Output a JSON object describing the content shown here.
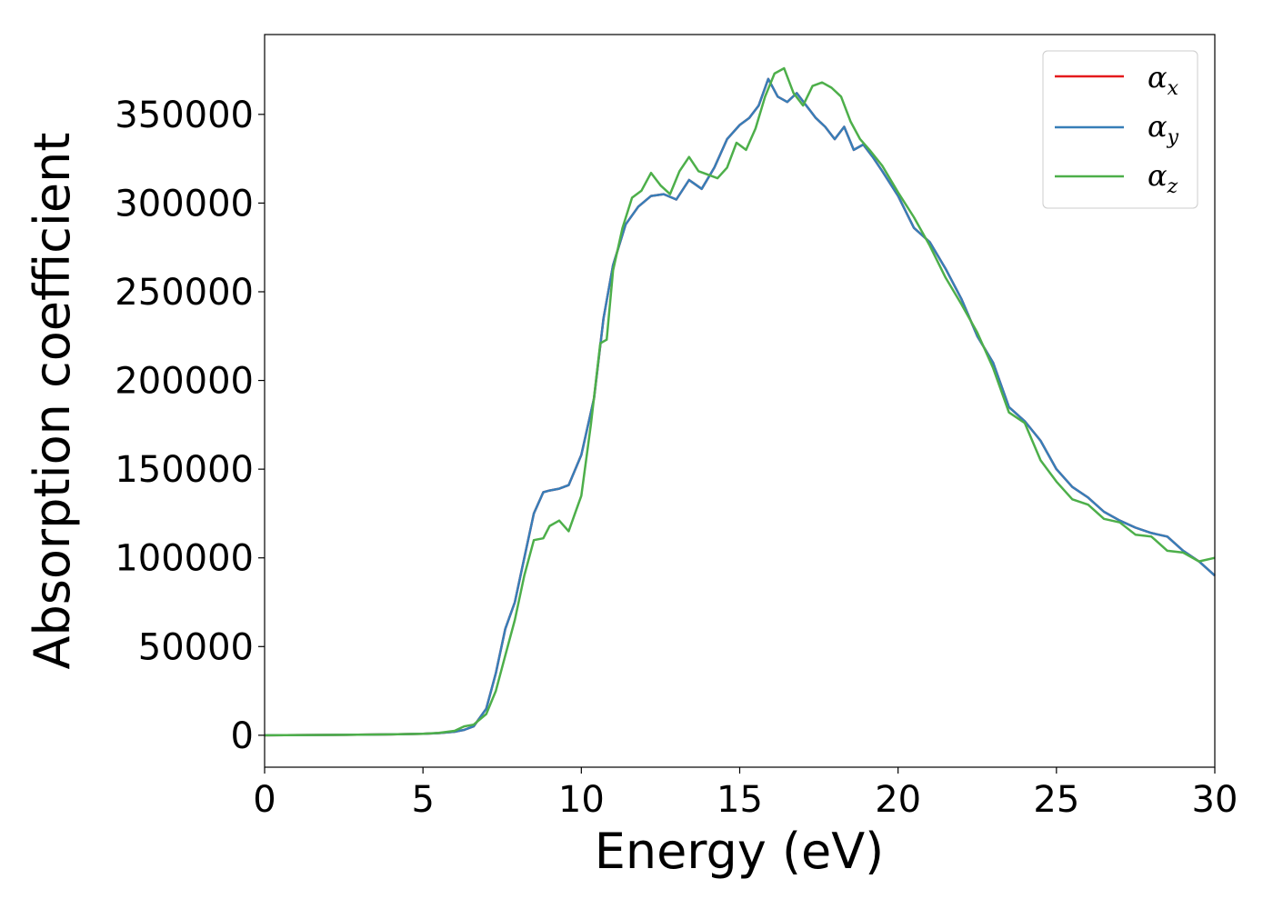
{
  "chart_data": {
    "type": "line",
    "xlabel": "Energy (eV)",
    "ylabel": "Absorption coefficient",
    "xlim": [
      0,
      30
    ],
    "ylim": [
      -18000,
      395000
    ],
    "xticks": [
      0,
      5,
      10,
      15,
      20,
      25,
      30
    ],
    "yticks": [
      0,
      50000,
      100000,
      150000,
      200000,
      250000,
      300000,
      350000
    ],
    "grid": false,
    "legend_position": "top-right",
    "series": [
      {
        "name": "α",
        "subscript": "x",
        "color": "#e41a1c",
        "x": [
          0,
          2,
          4,
          5,
          5.5,
          6,
          6.3,
          6.6,
          7,
          7.3,
          7.6,
          7.9,
          8.2,
          8.5,
          8.8,
          9.0,
          9.3,
          9.6,
          10.0,
          10.4,
          10.7,
          11.0,
          11.4,
          11.8,
          12.2,
          12.6,
          13.0,
          13.4,
          13.8,
          14.2,
          14.6,
          15.0,
          15.3,
          15.6,
          15.9,
          16.2,
          16.5,
          16.8,
          17.1,
          17.4,
          17.7,
          18.0,
          18.3,
          18.6,
          18.9,
          19.2,
          19.5,
          20.0,
          20.5,
          21.0,
          21.5,
          22.0,
          22.5,
          23.0,
          23.5,
          24.0,
          24.5,
          25.0,
          25.5,
          26.0,
          26.5,
          27.0,
          27.5,
          28.0,
          28.5,
          29.0,
          29.5,
          30.0
        ],
        "y": [
          0,
          200,
          500,
          800,
          1200,
          2000,
          3000,
          5000,
          15000,
          35000,
          60000,
          75000,
          100000,
          125000,
          137000,
          138000,
          139000,
          141000,
          158000,
          190000,
          235000,
          265000,
          288000,
          298000,
          304000,
          305000,
          302000,
          313000,
          308000,
          320000,
          336000,
          344000,
          348000,
          355000,
          370000,
          360000,
          357000,
          362000,
          355000,
          348000,
          343000,
          336000,
          343000,
          330000,
          333000,
          326000,
          318000,
          304000,
          286000,
          278000,
          263000,
          246000,
          225000,
          210000,
          185000,
          177000,
          166000,
          150000,
          140000,
          134000,
          126000,
          121000,
          117000,
          114000,
          112000,
          104000,
          98000,
          90000
        ]
      },
      {
        "name": "α",
        "subscript": "y",
        "color": "#377eb8",
        "x": [
          0,
          2,
          4,
          5,
          5.5,
          6,
          6.3,
          6.6,
          7,
          7.3,
          7.6,
          7.9,
          8.2,
          8.5,
          8.8,
          9.0,
          9.3,
          9.6,
          10.0,
          10.4,
          10.7,
          11.0,
          11.4,
          11.8,
          12.2,
          12.6,
          13.0,
          13.4,
          13.8,
          14.2,
          14.6,
          15.0,
          15.3,
          15.6,
          15.9,
          16.2,
          16.5,
          16.8,
          17.1,
          17.4,
          17.7,
          18.0,
          18.3,
          18.6,
          18.9,
          19.2,
          19.5,
          20.0,
          20.5,
          21.0,
          21.5,
          22.0,
          22.5,
          23.0,
          23.5,
          24.0,
          24.5,
          25.0,
          25.5,
          26.0,
          26.5,
          27.0,
          27.5,
          28.0,
          28.5,
          29.0,
          29.5,
          30.0
        ],
        "y": [
          0,
          200,
          500,
          800,
          1200,
          2000,
          3000,
          5000,
          15000,
          35000,
          60000,
          75000,
          100000,
          125000,
          137000,
          138000,
          139000,
          141000,
          158000,
          190000,
          235000,
          265000,
          288000,
          298000,
          304000,
          305000,
          302000,
          313000,
          308000,
          320000,
          336000,
          344000,
          348000,
          355000,
          370000,
          360000,
          357000,
          362000,
          355000,
          348000,
          343000,
          336000,
          343000,
          330000,
          333000,
          326000,
          318000,
          304000,
          286000,
          278000,
          263000,
          246000,
          225000,
          210000,
          185000,
          177000,
          166000,
          150000,
          140000,
          134000,
          126000,
          121000,
          117000,
          114000,
          112000,
          104000,
          98000,
          90000
        ]
      },
      {
        "name": "α",
        "subscript": "z",
        "color": "#4daf4a",
        "x": [
          0,
          2,
          4,
          5,
          5.5,
          6,
          6.3,
          6.6,
          7,
          7.3,
          7.6,
          7.9,
          8.2,
          8.5,
          8.8,
          9.0,
          9.3,
          9.6,
          10.0,
          10.3,
          10.6,
          10.8,
          11.0,
          11.3,
          11.6,
          11.9,
          12.2,
          12.5,
          12.8,
          13.1,
          13.4,
          13.7,
          14.0,
          14.3,
          14.6,
          14.9,
          15.2,
          15.5,
          15.8,
          16.1,
          16.4,
          16.7,
          17.0,
          17.3,
          17.6,
          17.9,
          18.2,
          18.5,
          18.8,
          19.1,
          19.5,
          20.0,
          20.5,
          21.0,
          21.5,
          22.0,
          22.5,
          23.0,
          23.5,
          24.0,
          24.5,
          25.0,
          25.5,
          26.0,
          26.5,
          27.0,
          27.5,
          28.0,
          28.5,
          29.0,
          29.5,
          30.0
        ],
        "y": [
          0,
          200,
          500,
          800,
          1300,
          2500,
          5000,
          6000,
          12000,
          25000,
          45000,
          65000,
          90000,
          110000,
          111000,
          118000,
          121000,
          115000,
          135000,
          175000,
          221000,
          223000,
          262000,
          286000,
          303000,
          307000,
          317000,
          310000,
          305000,
          318000,
          326000,
          318000,
          316000,
          314000,
          320000,
          334000,
          330000,
          342000,
          360000,
          373000,
          376000,
          362000,
          355000,
          366000,
          368000,
          365000,
          360000,
          346000,
          336000,
          330000,
          321000,
          306000,
          292000,
          276000,
          258000,
          243000,
          227000,
          207000,
          182000,
          176000,
          155000,
          143000,
          133000,
          130000,
          122000,
          120000,
          113000,
          112000,
          104000,
          103000,
          98000,
          100000
        ]
      }
    ]
  }
}
